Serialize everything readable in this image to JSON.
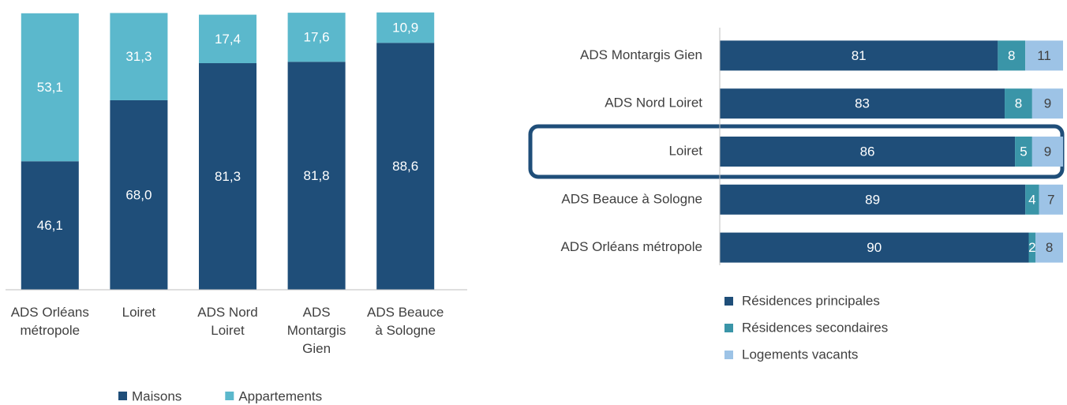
{
  "chart_data": [
    {
      "type": "bar",
      "orientation": "vertical",
      "stacked": true,
      "categories": [
        "ADS Orléans métropole",
        "Loiret",
        "ADS Nord Loiret",
        "ADS Montargis Gien",
        "ADS Beauce à Sologne"
      ],
      "series": [
        {
          "name": "Maisons",
          "color": "#1f4e79",
          "values": [
            46.1,
            68.0,
            81.3,
            81.8,
            88.6
          ],
          "value_labels": [
            "46,1",
            "68,0",
            "81,3",
            "81,8",
            "88,6"
          ]
        },
        {
          "name": "Appartements",
          "color": "#5bb8cc",
          "values": [
            53.1,
            31.3,
            17.4,
            17.6,
            10.9
          ],
          "value_labels": [
            "53,1",
            "31,3",
            "17,4",
            "17,6",
            "10,9"
          ]
        }
      ],
      "ylim": [
        0,
        100
      ],
      "legend": "bottom"
    },
    {
      "type": "bar",
      "orientation": "horizontal",
      "stacked": true,
      "categories": [
        "ADS Montargis Gien",
        "ADS Nord Loiret",
        "Loiret",
        "ADS Beauce à Sologne",
        "ADS Orléans métropole"
      ],
      "series": [
        {
          "name": "Résidences principales",
          "color": "#1f4e79",
          "values": [
            81,
            83,
            86,
            89,
            90
          ]
        },
        {
          "name": "Résidences secondaires",
          "color": "#3a95a8",
          "values": [
            8,
            8,
            5,
            4,
            2
          ]
        },
        {
          "name": "Logements vacants",
          "color": "#9dc3e6",
          "values": [
            11,
            9,
            9,
            7,
            8
          ]
        }
      ],
      "xlim": [
        0,
        100
      ],
      "legend": "bottom",
      "highlight": "Loiret"
    }
  ]
}
